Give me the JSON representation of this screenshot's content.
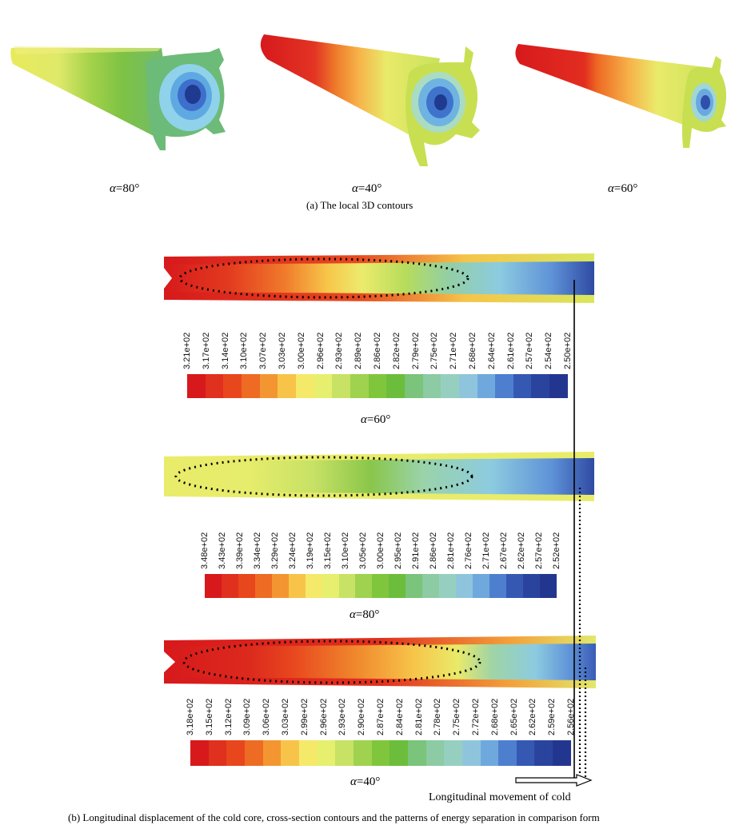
{
  "figure_a": {
    "panels": [
      {
        "alpha": "=80°"
      },
      {
        "alpha": "=40°"
      },
      {
        "alpha": "=60°"
      }
    ],
    "caption": "(a) The local 3D contours"
  },
  "figure_b": {
    "sections": [
      {
        "alpha": "=60°",
        "ticks": [
          "3.21e+02",
          "3.17e+02",
          "3.14e+02",
          "3.10e+02",
          "3.07e+02",
          "3.03e+02",
          "3.00e+02",
          "2.96e+02",
          "2.93e+02",
          "2.89e+02",
          "2.86e+02",
          "2.82e+02",
          "2.79e+02",
          "2.75e+02",
          "2.71e+02",
          "2.68e+02",
          "2.64e+02",
          "2.61e+02",
          "2.57e+02",
          "2.54e+02",
          "2.50e+02"
        ],
        "colors": [
          "#d7191c",
          "#e0301e",
          "#e8461d",
          "#ee6b24",
          "#f39631",
          "#f7c449",
          "#f5e96a",
          "#e6ef6e",
          "#c7e265",
          "#9fd24f",
          "#80c63c",
          "#6cbd3b",
          "#7ac47b",
          "#8ccba3",
          "#96cfc0",
          "#8fc5dc",
          "#6fa8dc",
          "#4e7fcf",
          "#3558b3",
          "#2a449e",
          "#23368f"
        ]
      },
      {
        "alpha": "=80°",
        "ticks": [
          "3.48e+02",
          "3.43e+02",
          "3.39e+02",
          "3.34e+02",
          "3.29e+02",
          "3.24e+02",
          "3.19e+02",
          "3.15e+02",
          "3.10e+02",
          "3.05e+02",
          "3.00e+02",
          "2.95e+02",
          "2.91e+02",
          "2.86e+02",
          "2.81e+02",
          "2.76e+02",
          "2.71e+02",
          "2.67e+02",
          "2.62e+02",
          "2.57e+02",
          "2.52e+02"
        ],
        "colors": [
          "#d7191c",
          "#e0301e",
          "#e8461d",
          "#ee6b24",
          "#f39631",
          "#f7c449",
          "#f5e96a",
          "#e6ef6e",
          "#c7e265",
          "#9fd24f",
          "#80c63c",
          "#6cbd3b",
          "#7ac47b",
          "#8ccba3",
          "#96cfc0",
          "#8fc5dc",
          "#6fa8dc",
          "#4e7fcf",
          "#3558b3",
          "#2a449e",
          "#23368f"
        ]
      },
      {
        "alpha": "=40°",
        "ticks": [
          "3.18e+02",
          "3.15e+02",
          "3.12e+02",
          "3.09e+02",
          "3.06e+02",
          "3.03e+02",
          "2.99e+02",
          "2.96e+02",
          "2.93e+02",
          "2.90e+02",
          "2.87e+02",
          "2.84e+02",
          "2.81e+02",
          "2.78e+02",
          "2.75e+02",
          "2.72e+02",
          "2.68e+02",
          "2.65e+02",
          "2.62e+02",
          "2.59e+02",
          "2.56e+02"
        ],
        "colors": [
          "#d7191c",
          "#e0301e",
          "#e8461d",
          "#ee6b24",
          "#f39631",
          "#f7c449",
          "#f5e96a",
          "#e6ef6e",
          "#c7e265",
          "#9fd24f",
          "#80c63c",
          "#6cbd3b",
          "#7ac47b",
          "#8ccba3",
          "#96cfc0",
          "#8fc5dc",
          "#6fa8dc",
          "#4e7fcf",
          "#3558b3",
          "#2a449e",
          "#23368f"
        ]
      }
    ],
    "arrow_label": "Longitudinal movement of cold",
    "caption": "(b) Longitudinal displacement of the cold core, cross-section contours and the patterns of energy separation in comparison form"
  }
}
